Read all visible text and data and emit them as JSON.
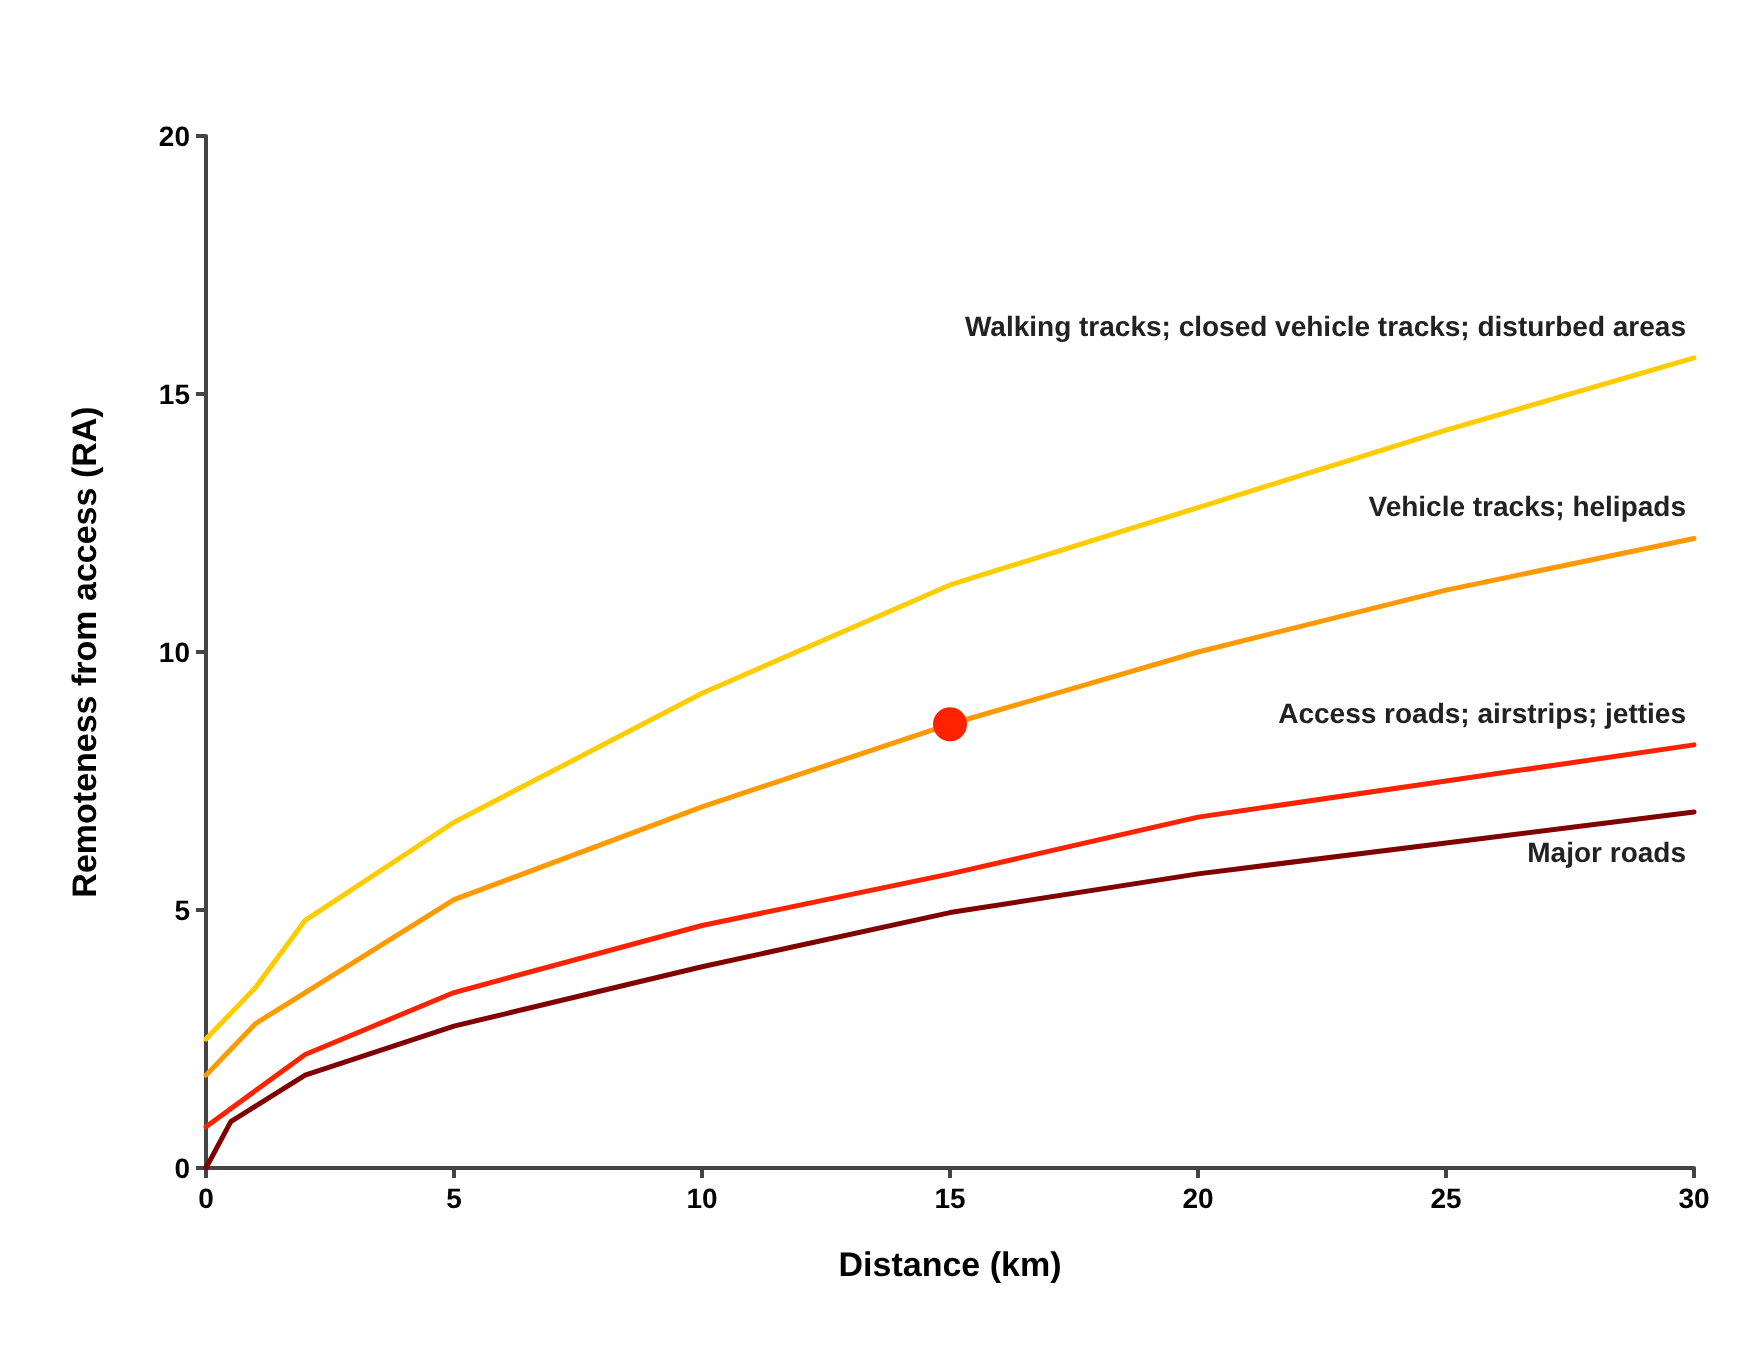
{
  "chart_data": {
    "type": "line",
    "xlabel": "Distance (km)",
    "ylabel": "Remoteness from access (RA)",
    "xlim": [
      0,
      30
    ],
    "xticks": [
      0,
      5,
      10,
      15,
      20,
      25,
      30
    ],
    "ylim": [
      0,
      20
    ],
    "yticks": [
      0,
      5,
      10,
      15,
      20
    ],
    "grid": false,
    "marker": "none",
    "line_style": "solid",
    "series": [
      {
        "name": "Walking tracks; closed vehicle tracks; disturbed areas",
        "color": "#ffcc00",
        "x": [
          0,
          1,
          2,
          5,
          10,
          15,
          20,
          25,
          30
        ],
        "values": [
          2.5,
          3.5,
          4.8,
          6.7,
          9.2,
          11.3,
          12.8,
          14.3,
          15.7
        ]
      },
      {
        "name": "Vehicle tracks; helipads",
        "color": "#ff9900",
        "x": [
          0,
          1,
          2,
          5,
          10,
          15,
          20,
          25,
          30
        ],
        "values": [
          1.8,
          2.8,
          3.4,
          5.2,
          7.0,
          8.6,
          10.0,
          11.2,
          12.2
        ]
      },
      {
        "name": "Access roads; airstrips; jetties",
        "color": "#ff2200",
        "x": [
          0,
          1,
          2,
          5,
          10,
          15,
          20,
          25,
          30
        ],
        "values": [
          0.8,
          1.5,
          2.2,
          3.4,
          4.7,
          5.7,
          6.8,
          7.5,
          8.2
        ]
      },
      {
        "name": "Major roads",
        "color": "#800000",
        "x": [
          0,
          0.5,
          1,
          2,
          5,
          10,
          15,
          20,
          25,
          30
        ],
        "values": [
          0,
          0.9,
          1.2,
          1.8,
          2.75,
          3.9,
          4.95,
          5.7,
          6.3,
          6.9
        ]
      },
      {
        "type": "scatter",
        "color": "#ff2200",
        "marker": "circle",
        "x": [
          15
        ],
        "values": [
          8.6
        ]
      }
    ]
  }
}
